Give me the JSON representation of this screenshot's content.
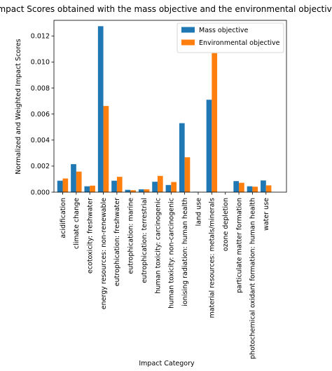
{
  "chart_data": {
    "type": "bar",
    "title": "Impact Scores obtained with the mass objective and the environmental objective",
    "xlabel": "Impact Category",
    "ylabel": "Normalized and Weighted Impact Scores",
    "ylim": [
      0,
      0.0132
    ],
    "yticks": [
      "0.000",
      "0.002",
      "0.004",
      "0.006",
      "0.008",
      "0.010",
      "0.012"
    ],
    "ytick_values": [
      0,
      0.002,
      0.004,
      0.006,
      0.008,
      0.01,
      0.012
    ],
    "legend_position": "top-right",
    "grid": false,
    "categories": [
      "acidification",
      "climate change",
      "ecotoxicity: freshwater",
      "energy resources: non-renewable",
      "eutrophication: freshwater",
      "eutrophication: marine",
      "eutrophication: terrestrial",
      "human toxicity: carcinogenic",
      "human toxicity: non-carcinogenic",
      "ionising radiation: human health",
      "land use",
      "material resources: metals/minerals",
      "ozone depletion",
      "particulate matter formation",
      "photochemical oxidant formation: human health",
      "water use"
    ],
    "series": [
      {
        "name": "Mass objective",
        "color": "#1f77b4",
        "values": [
          0.00088,
          0.00215,
          0.00045,
          0.01275,
          0.00088,
          0.00018,
          0.00022,
          0.0008,
          0.00055,
          0.0053,
          3e-05,
          0.0071,
          5e-06,
          0.00085,
          0.00045,
          0.0009
        ]
      },
      {
        "name": "Environmental objective",
        "color": "#ff7f0e",
        "values": [
          0.00105,
          0.00158,
          0.0005,
          0.00662,
          0.00118,
          0.00015,
          0.00022,
          0.00125,
          0.00078,
          0.00268,
          2e-05,
          0.01068,
          3e-06,
          0.00072,
          0.00042,
          0.00052
        ]
      }
    ]
  }
}
